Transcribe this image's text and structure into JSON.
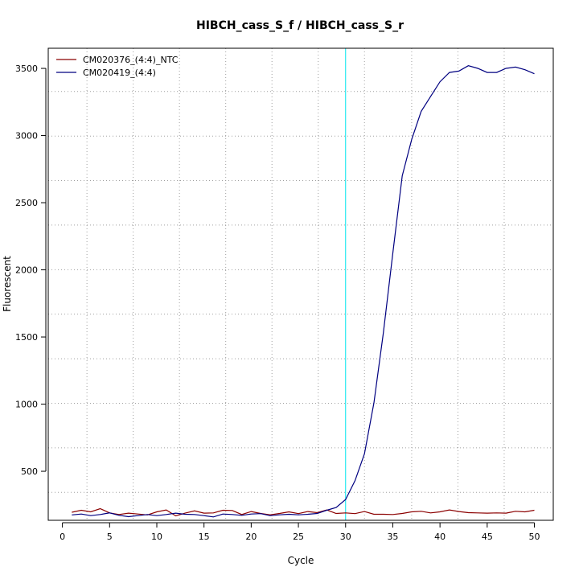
{
  "chart_data": {
    "type": "line",
    "title": "HIBCH_cass_S_f / HIBCH_cass_S_r",
    "xlabel": "Cycle",
    "ylabel": "Fluorescent",
    "xlim": [
      -1.5,
      52
    ],
    "ylim": [
      135,
      3650
    ],
    "x_ticks": [
      0,
      5,
      10,
      15,
      20,
      25,
      30,
      35,
      40,
      45,
      50
    ],
    "y_ticks": [
      500,
      1000,
      1500,
      2000,
      2500,
      3000,
      3500
    ],
    "x_grid": [
      2.6,
      7.5,
      12.4,
      17.3,
      22.2,
      27.1,
      32.0,
      37.0,
      41.9,
      46.8
    ],
    "y_grid": [
      343,
      675,
      1006,
      1338,
      1670,
      2001,
      2333,
      2665,
      2996,
      3328,
      3660
    ],
    "threshold": {
      "axis": "x",
      "value": 30,
      "color": "#00e5ee"
    },
    "legend_position": "top-left",
    "grid": true,
    "series": [
      {
        "name": "CM020376_(4:4)_NTC",
        "color": "#8b0000",
        "x": [
          1,
          2,
          3,
          4,
          5,
          6,
          7,
          8,
          9,
          10,
          11,
          12,
          13,
          14,
          15,
          16,
          17,
          18,
          19,
          20,
          21,
          22,
          23,
          24,
          25,
          26,
          27,
          28,
          29,
          30,
          31,
          32,
          33,
          34,
          35,
          36,
          37,
          38,
          39,
          40,
          41,
          42,
          43,
          44,
          45,
          46,
          47,
          48,
          49,
          50
        ],
        "y": [
          195,
          210,
          198,
          222,
          190,
          178,
          188,
          182,
          175,
          198,
          212,
          168,
          188,
          205,
          188,
          190,
          210,
          208,
          178,
          200,
          186,
          176,
          186,
          198,
          185,
          200,
          192,
          212,
          186,
          190,
          185,
          200,
          180,
          180,
          178,
          186,
          198,
          202,
          190,
          198,
          212,
          200,
          192,
          190,
          188,
          190,
          188,
          202,
          198,
          210
        ]
      },
      {
        "name": "CM020419_(4:4)",
        "color": "#000080",
        "x": [
          1,
          2,
          3,
          4,
          5,
          6,
          7,
          8,
          9,
          10,
          11,
          12,
          13,
          14,
          15,
          16,
          17,
          18,
          19,
          20,
          21,
          22,
          23,
          24,
          25,
          26,
          27,
          28,
          29,
          30,
          31,
          32,
          33,
          34,
          35,
          36,
          37,
          38,
          39,
          40,
          41,
          42,
          43,
          44,
          45,
          46,
          47,
          48,
          49,
          50
        ],
        "y": [
          175,
          182,
          170,
          178,
          190,
          172,
          162,
          170,
          178,
          170,
          178,
          188,
          180,
          178,
          170,
          160,
          182,
          178,
          172,
          182,
          185,
          170,
          176,
          180,
          176,
          180,
          186,
          210,
          230,
          290,
          430,
          630,
          1010,
          1530,
          2120,
          2700,
          2970,
          3180,
          3290,
          3400,
          3470,
          3480,
          3520,
          3500,
          3470,
          3470,
          3500,
          3510,
          3490,
          3460
        ]
      }
    ]
  }
}
